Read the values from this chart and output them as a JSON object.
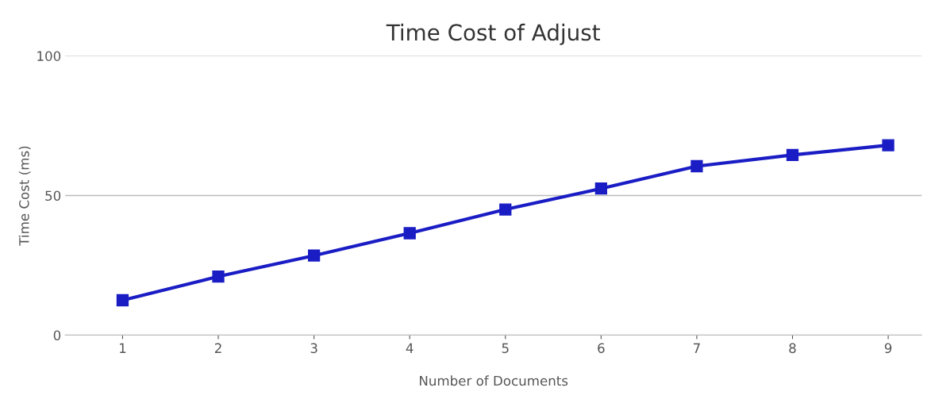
{
  "chart_data": {
    "type": "line",
    "title": "Time Cost of Adjust",
    "xlabel": "Number of Documents",
    "ylabel": "Time Cost (ms)",
    "categories": [
      "1",
      "2",
      "3",
      "4",
      "5",
      "6",
      "7",
      "8",
      "9"
    ],
    "series": [
      {
        "color": "#1a1dc4",
        "values": [
          12.5,
          21,
          28.5,
          36.5,
          45,
          52.5,
          60.5,
          64.5,
          68
        ]
      }
    ],
    "ylim": [
      0,
      100
    ],
    "yticks": [
      0,
      50,
      100
    ],
    "grid": "y",
    "marker": "square",
    "line_style": "solid"
  }
}
